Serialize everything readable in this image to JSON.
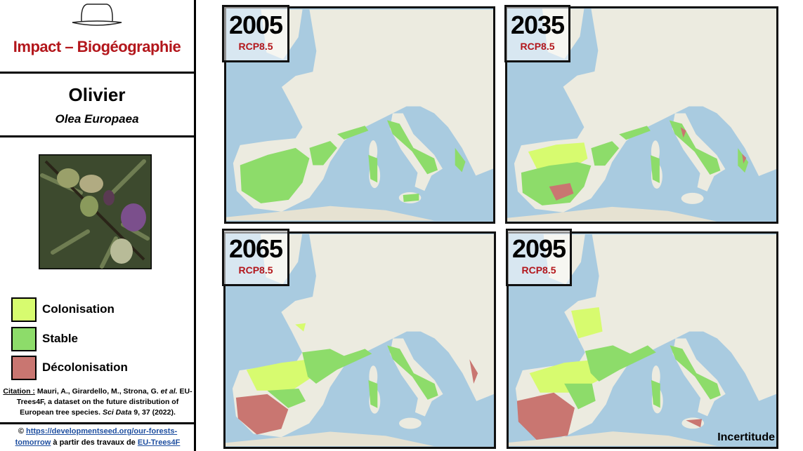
{
  "header": {
    "title": "Impact – Biogéographie"
  },
  "species": {
    "name": "Olivier",
    "latin": "Olea Europaea"
  },
  "legend": [
    {
      "label": "Colonisation",
      "color": "#d7fb6f"
    },
    {
      "label": "Stable",
      "color": "#8ddc6a"
    },
    {
      "label": "Décolonisation",
      "color": "#c97671"
    }
  ],
  "citation": {
    "lead": "Citation :",
    "authors": "Mauri, A., Girardello, M., Strona, G.",
    "etal": "et al.",
    "body": "EU-Trees4F, a dataset on the future distribution of European tree species.",
    "journal": "Sci Data",
    "ref": "9, 37 (2022)."
  },
  "footer": {
    "symbol": "©",
    "link": "https://developmentseed.org/our-forests-tomorrow",
    "text": "à partir des travaux de",
    "source": "EU-Trees4F"
  },
  "maps": [
    {
      "year": "2005",
      "scenario": "RCP8.5"
    },
    {
      "year": "2035",
      "scenario": "RCP8.5"
    },
    {
      "year": "2065",
      "scenario": "RCP8.5"
    },
    {
      "year": "2095",
      "scenario": "RCP8.5"
    }
  ],
  "note": "Incertitude"
}
